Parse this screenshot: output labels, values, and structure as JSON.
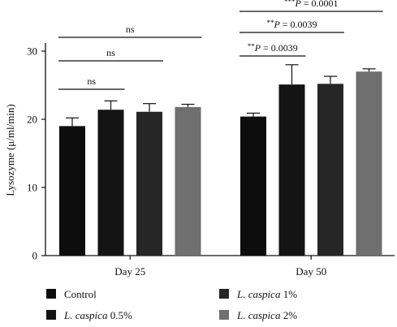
{
  "chart_data": {
    "type": "bar",
    "ylabel": "Lysozyme (μ/ml/min)",
    "ylim": [
      0,
      30
    ],
    "yticks": [
      0,
      10,
      20,
      30
    ],
    "categories": [
      "Day 25",
      "Day 50"
    ],
    "series": [
      {
        "name": "Control",
        "italic": "",
        "suffix": "",
        "color": "#0d0d0d",
        "values": [
          19.0,
          20.4
        ],
        "errors": [
          1.2,
          0.5
        ]
      },
      {
        "name": "L. caspica 0.5%",
        "italic": "L. caspica",
        "suffix": " 0.5%",
        "color": "#141414",
        "values": [
          21.4,
          25.1
        ],
        "errors": [
          1.3,
          2.9
        ]
      },
      {
        "name": "L. caspica 1%",
        "italic": "L. caspica",
        "suffix": " 1%",
        "color": "#262626",
        "values": [
          21.1,
          25.2
        ],
        "errors": [
          1.2,
          1.1
        ]
      },
      {
        "name": "L. caspica 2%",
        "italic": "L. caspica",
        "suffix": " 2%",
        "color": "#6f6f6f",
        "values": [
          21.8,
          27.0
        ],
        "errors": [
          0.4,
          0.4
        ]
      }
    ],
    "significance": [
      {
        "group": 0,
        "from": 0,
        "to": 1,
        "stars": "",
        "label": "ns"
      },
      {
        "group": 0,
        "from": 0,
        "to": 2,
        "stars": "",
        "label": "ns"
      },
      {
        "group": 0,
        "from": 0,
        "to": 3,
        "stars": "",
        "label": "ns"
      },
      {
        "group": 1,
        "from": 0,
        "to": 1,
        "stars": "**",
        "label": "P = 0.0039"
      },
      {
        "group": 1,
        "from": 0,
        "to": 2,
        "stars": "**",
        "label": "P = 0.0039"
      },
      {
        "group": 1,
        "from": 0,
        "to": 3,
        "stars": "***",
        "label": "P = 0.0001"
      }
    ],
    "legend": "bottom"
  }
}
